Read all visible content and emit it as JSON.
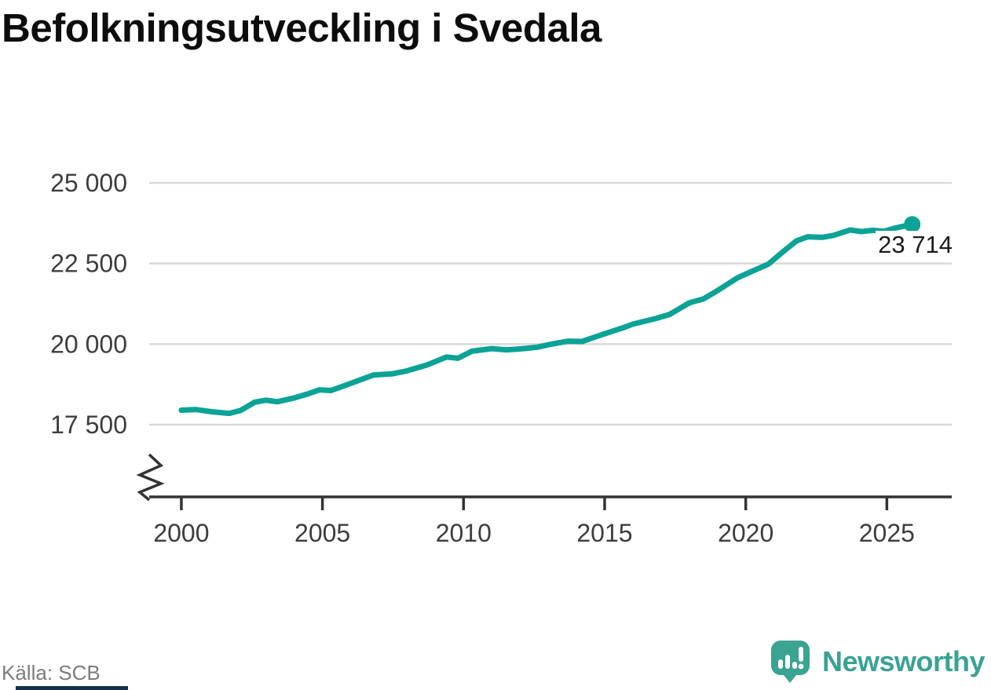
{
  "title": "Befolkningsutveckling i Svedala",
  "footer": {
    "source": "Källa: SCB",
    "brand": "Newsworthy"
  },
  "colors": {
    "line": "#0aa396",
    "brand": "#3aa392",
    "grid": "#dadada",
    "axis": "#333333",
    "tick_text": "#3d3d3d",
    "label_text": "#1c1c1c",
    "muted_text": "#7c7c7c",
    "bottom_bar": "#16304a"
  },
  "chart_data": {
    "type": "line",
    "title": "Befolkningsutveckling i Svedala",
    "xlabel": "",
    "ylabel": "",
    "grid": true,
    "legend": "none",
    "axis_break": true,
    "xlim": [
      1999,
      2027.3
    ],
    "ylim": [
      17500,
      25000
    ],
    "x_ticks": [
      {
        "v": 2000,
        "label": "2000"
      },
      {
        "v": 2005,
        "label": "2005"
      },
      {
        "v": 2010,
        "label": "2010"
      },
      {
        "v": 2015,
        "label": "2015"
      },
      {
        "v": 2020,
        "label": "2020"
      },
      {
        "v": 2025,
        "label": "2025"
      }
    ],
    "y_ticks": [
      {
        "v": 17500,
        "label": "17 500"
      },
      {
        "v": 20000,
        "label": "20 000"
      },
      {
        "v": 22500,
        "label": "22 500"
      },
      {
        "v": 25000,
        "label": "25 000"
      }
    ],
    "last_value_label": "23 714",
    "last_point": {
      "x": 2025.9,
      "y": 23714
    },
    "series": [
      {
        "name": "Befolkning i Svedala",
        "points": [
          [
            2000.0,
            17950
          ],
          [
            2000.5,
            17970
          ],
          [
            2001.1,
            17900
          ],
          [
            2001.7,
            17850
          ],
          [
            2002.1,
            17940
          ],
          [
            2002.6,
            18200
          ],
          [
            2003.0,
            18260
          ],
          [
            2003.4,
            18210
          ],
          [
            2004.0,
            18330
          ],
          [
            2004.5,
            18460
          ],
          [
            2004.9,
            18580
          ],
          [
            2005.3,
            18560
          ],
          [
            2006.0,
            18780
          ],
          [
            2006.8,
            19040
          ],
          [
            2007.5,
            19080
          ],
          [
            2008.0,
            19170
          ],
          [
            2008.7,
            19350
          ],
          [
            2009.4,
            19600
          ],
          [
            2009.8,
            19560
          ],
          [
            2010.3,
            19780
          ],
          [
            2011.0,
            19860
          ],
          [
            2011.5,
            19820
          ],
          [
            2012.0,
            19850
          ],
          [
            2012.6,
            19900
          ],
          [
            2013.0,
            19980
          ],
          [
            2013.7,
            20090
          ],
          [
            2014.2,
            20080
          ],
          [
            2015.0,
            20320
          ],
          [
            2015.7,
            20520
          ],
          [
            2016.0,
            20620
          ],
          [
            2016.8,
            20790
          ],
          [
            2017.3,
            20920
          ],
          [
            2018.0,
            21280
          ],
          [
            2018.5,
            21400
          ],
          [
            2019.0,
            21660
          ],
          [
            2019.7,
            22050
          ],
          [
            2020.2,
            22250
          ],
          [
            2020.8,
            22480
          ],
          [
            2021.3,
            22850
          ],
          [
            2021.8,
            23200
          ],
          [
            2022.2,
            23330
          ],
          [
            2022.7,
            23310
          ],
          [
            2023.1,
            23370
          ],
          [
            2023.7,
            23540
          ],
          [
            2024.1,
            23490
          ],
          [
            2024.5,
            23530
          ],
          [
            2024.9,
            23500
          ],
          [
            2025.3,
            23600
          ],
          [
            2025.9,
            23714
          ]
        ]
      }
    ]
  }
}
